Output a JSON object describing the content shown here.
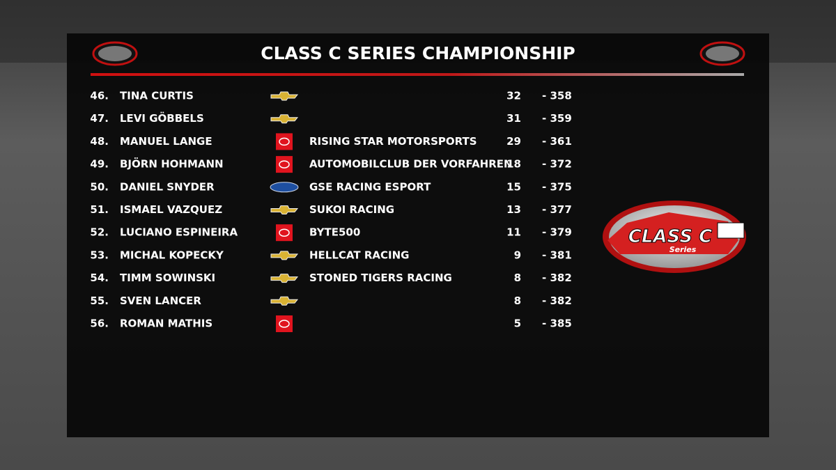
{
  "header": {
    "title": "CLASS C SERIES CHAMPIONSHIP"
  },
  "class_logo": {
    "title": "CLASS C",
    "subtitle": "Series"
  },
  "table": {
    "rows": [
      {
        "position": "46.",
        "name": "TINA CURTIS",
        "team": null,
        "points": "32",
        "gap": "- 358"
      },
      {
        "position": "47.",
        "name": "LEVI GÖBBELS",
        "team": null,
        "points": "31",
        "gap": "- 359"
      },
      {
        "position": "48.",
        "name": "MANUEL LANGE",
        "team": "RISING STAR MOTORSPORTS",
        "points": "29",
        "gap": "- 361"
      },
      {
        "position": "49.",
        "name": "BJÖRN HOHMANN",
        "team": "AUTOMOBILCLUB DER VORFAHREN",
        "points": "18",
        "gap": "- 372"
      },
      {
        "position": "50.",
        "name": "DANIEL SNYDER",
        "team": "GSE RACING ESPORT",
        "points": "15",
        "gap": "- 375"
      },
      {
        "position": "51.",
        "name": "ISMAEL VAZQUEZ",
        "team": "SUKOI RACING",
        "points": "13",
        "gap": "- 377"
      },
      {
        "position": "52.",
        "name": "LUCIANO ESPINEIRA",
        "team": "BYTE500",
        "points": "11",
        "gap": "- 379"
      },
      {
        "position": "53.",
        "name": "MICHAL KOPECKY",
        "team": "HELLCAT RACING",
        "points": "9",
        "gap": "- 381"
      },
      {
        "position": "54.",
        "name": "TIMM SOWINSKI",
        "team": "STONED TIGERS RACING",
        "points": "8",
        "gap": "- 382"
      },
      {
        "position": "55.",
        "name": "SVEN LANCER",
        "team": null,
        "points": "8",
        "gap": "- 382"
      },
      {
        "position": "56.",
        "name": "ROMAN MATHIS",
        "team": null,
        "points": "5",
        "gap": "- 385"
      }
    ]
  }
}
